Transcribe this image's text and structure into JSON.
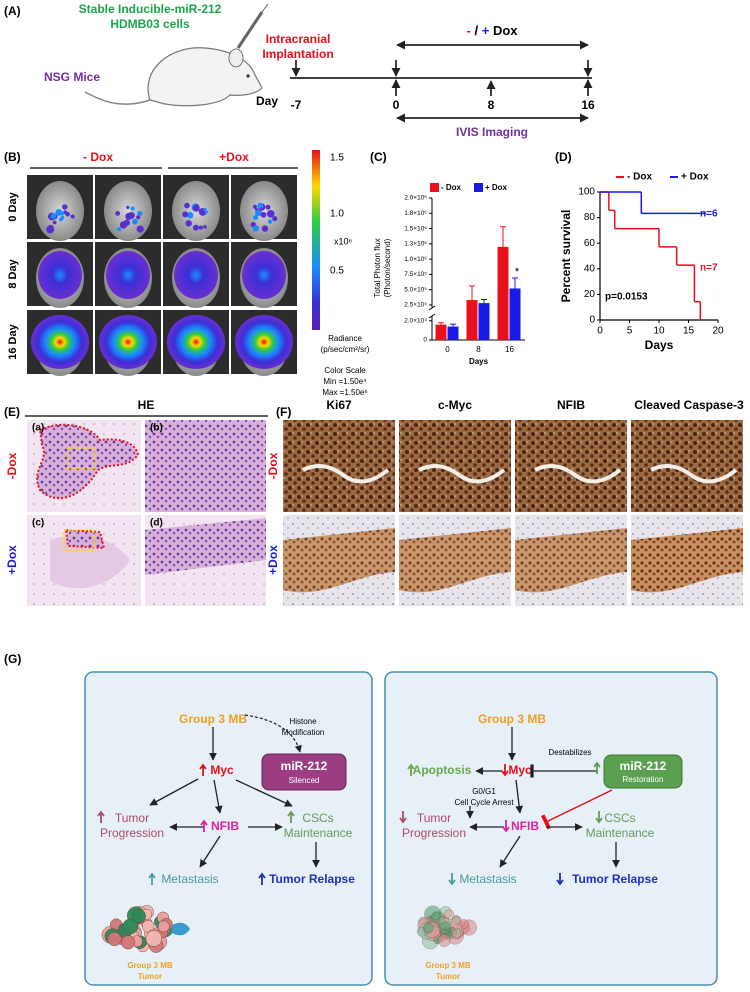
{
  "panel_a": {
    "label": "(A)",
    "cells": [
      "Stable Inducible-miR-212",
      "HDMB03 cells"
    ],
    "mice": "NSG Mice",
    "implantation": [
      "Intracranial",
      "Implantation"
    ],
    "dox": {
      "minus": "-",
      "slash": "/",
      "plus": "+",
      "word": "Dox"
    },
    "day_label": "Day",
    "days": [
      -7,
      0,
      8,
      16
    ],
    "imaging": "IVIS Imaging"
  },
  "panel_b": {
    "label": "(B)",
    "groups": [
      "- Dox",
      "+Dox"
    ],
    "rows": [
      "0 Day",
      "8 Day",
      "16 Day"
    ],
    "scale_ticks": [
      "1.5",
      "1.0",
      "0.5"
    ],
    "scale_unit": "x10⁶",
    "radiance": [
      "Radiance",
      "(p/sec/cm²/sr)"
    ],
    "color_scale": [
      "Color Scale",
      "Min =1.50e⁴",
      "Max =1.50e⁶"
    ]
  },
  "chart_data": [
    {
      "type": "bar",
      "panel_label": "(C)",
      "ylabel": [
        "Total Photon flux",
        "(Photon/second)"
      ],
      "xlabel": "Days",
      "categories": [
        "0",
        "8",
        "16"
      ],
      "series": [
        {
          "name": "- Dox",
          "color": "#e8101a",
          "values": [
            16000,
            330000,
            1200000
          ],
          "errors": [
            2000,
            230000,
            330000
          ]
        },
        {
          "name": "+ Dox",
          "color": "#1a1ae8",
          "values": [
            14000,
            280000,
            520000
          ],
          "errors": [
            2500,
            60000,
            170000
          ]
        }
      ],
      "ylim": [
        0,
        2000000
      ],
      "ybreak": [
        25000,
        200000
      ],
      "yticks": [
        0,
        {
          "value": 20000,
          "label": "2.0×10⁴"
        },
        {
          "value": 250000,
          "label": "2.5×10⁵"
        },
        {
          "value": 500000,
          "label": "5.0×10⁵"
        },
        {
          "value": 750000,
          "label": "7.5×10⁵"
        },
        {
          "value": 1000000,
          "label": "1.0×10⁶"
        },
        {
          "value": 1250000,
          "label": "1.3×10⁶"
        },
        {
          "value": 1500000,
          "label": "1.5×10⁶"
        },
        {
          "value": 1750000,
          "label": "1.8×10⁶"
        },
        {
          "value": 2000000,
          "label": "2.0×10⁶"
        }
      ],
      "annotations": [
        "*"
      ]
    },
    {
      "type": "step",
      "panel_label": "(D)",
      "ylabel": "Percent survival",
      "xlabel": "Days",
      "xlim": [
        0,
        20
      ],
      "ylim": [
        0,
        100
      ],
      "xticks": [
        0,
        5,
        10,
        15,
        20
      ],
      "yticks": [
        0,
        20,
        40,
        60,
        80,
        100
      ],
      "series": [
        {
          "name": "- Dox",
          "color": "#e8101a",
          "x": [
            0,
            1.5,
            2.5,
            10,
            13,
            16,
            17
          ],
          "values": [
            100,
            85.7,
            71.4,
            57.1,
            42.9,
            14.3,
            0
          ]
        },
        {
          "name": "+ Dox",
          "color": "#1a1ae8",
          "x": [
            0,
            7,
            18
          ],
          "values": [
            100,
            83.3,
            83.3
          ]
        }
      ],
      "annotations": [
        {
          "text": "n=6",
          "color": "#1a1ae8"
        },
        {
          "text": "n=7",
          "color": "#e8101a"
        },
        {
          "text": "p=0.0153",
          "color": "#000000"
        }
      ]
    }
  ],
  "panel_e": {
    "label": "(E)",
    "title": "HE",
    "sublabels": [
      "(a)",
      "(b)",
      "(c)",
      "(d)"
    ],
    "rows": [
      "-Dox",
      "+Dox"
    ]
  },
  "panel_f": {
    "label": "(F)",
    "columns": [
      "Ki67",
      "c-Myc",
      "NFIB",
      "Cleaved Caspase-3"
    ],
    "rows": [
      "-Dox",
      "+Dox"
    ]
  },
  "panel_g": {
    "label": "(G)",
    "left": {
      "source": "Group 3 MB",
      "histone": [
        "Histone",
        "Modification"
      ],
      "myc": "Myc",
      "mir": "miR-212",
      "mir_state": "Silenced",
      "progression": [
        "Tumor",
        "Progression"
      ],
      "nfib": "NFIB",
      "cscs": [
        "CSCs",
        "Maintenance"
      ],
      "metastasis": "Metastasis",
      "relapse": "Tumor Relapse",
      "tumor": [
        "Group 3 MB",
        "Tumor"
      ]
    },
    "right": {
      "source": "Group 3 MB",
      "apoptosis": "Apoptosis",
      "myc": "Myc",
      "destabilizes": "Destabilizes",
      "mir": "miR-212",
      "mir_state": "Restoration",
      "arrest": [
        "G0/G1",
        "Cell Cycle Arrest"
      ],
      "progression": [
        "Tumor",
        "Progression"
      ],
      "nfib": "NFIB",
      "cscs": [
        "CSCs",
        "Maintenance"
      ],
      "metastasis": "Metastasis",
      "relapse": "Tumor Relapse",
      "tumor": [
        "Group 3 MB",
        "Tumor"
      ]
    }
  }
}
